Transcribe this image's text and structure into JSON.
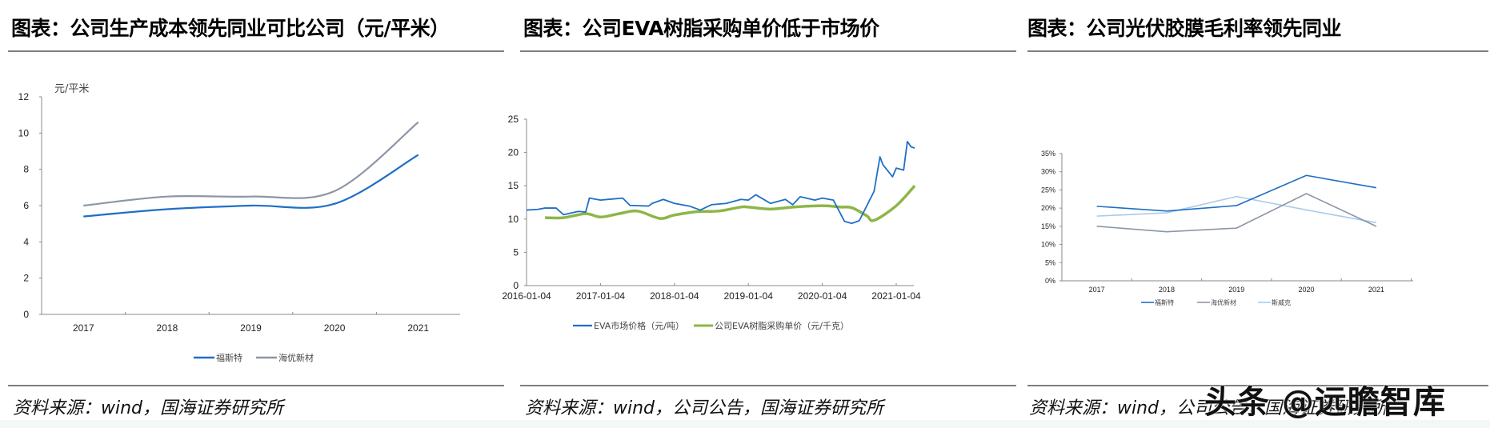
{
  "panels": [
    {
      "title": "图表：公司生产成本领先同业可比公司（元/平米）",
      "source": "资料来源：wind，国海证券研究所"
    },
    {
      "title": "图表：公司EVA树脂采购单价低于市场价",
      "source": "资料来源：wind，公司公告，国海证券研究所"
    },
    {
      "title": "图表：公司光伏胶膜毛利率领先同业",
      "source": "资料来源：wind，公司公告，国海证券研究所"
    }
  ],
  "watermark": "头条 @远瞻智库",
  "colors": {
    "blue": "#1f6fc5",
    "gray": "#8c96a6",
    "green": "#8db648",
    "light_blue": "#a8cbea",
    "rule": "#7f7f7f"
  },
  "chart_data": [
    {
      "type": "line",
      "title": "图表：公司生产成本领先同业可比公司（元/平米）",
      "ylabel": "元/平米",
      "xlabel": "",
      "categories": [
        "2017",
        "2018",
        "2019",
        "2020",
        "2021"
      ],
      "yticks": [
        "0",
        "2",
        "4",
        "6",
        "8",
        "10",
        "12"
      ],
      "ylim": [
        0,
        12
      ],
      "series": [
        {
          "name": "福斯特",
          "color": "#1f6fc5",
          "values": [
            5.4,
            5.8,
            6.0,
            6.1,
            8.8
          ]
        },
        {
          "name": "海优新材",
          "color": "#8c96a6",
          "values": [
            6.0,
            6.5,
            6.5,
            6.8,
            10.6
          ]
        }
      ],
      "legend_position": "bottom",
      "grid": false,
      "smooth": true
    },
    {
      "type": "line",
      "title": "图表：公司EVA树脂采购单价低于市场价",
      "xlabel": "",
      "ylabel": "",
      "x_ticks": [
        "2016-01-04",
        "2017-01-04",
        "2018-01-04",
        "2019-01-04",
        "2020-01-04",
        "2021-01-04"
      ],
      "yticks": [
        "0",
        "5",
        "10",
        "15",
        "20",
        "25"
      ],
      "ylim": [
        0,
        25
      ],
      "series": [
        {
          "name": "EVA市场价格（元/吨）",
          "color": "#1f6fc5",
          "x": [
            2016.0,
            2016.15,
            2016.25,
            2016.4,
            2016.5,
            2016.7,
            2016.8,
            2016.85,
            2017.0,
            2017.3,
            2017.4,
            2017.65,
            2017.7,
            2017.85,
            2018.0,
            2018.2,
            2018.35,
            2018.5,
            2018.7,
            2018.9,
            2019.0,
            2019.1,
            2019.3,
            2019.5,
            2019.6,
            2019.7,
            2019.9,
            2020.0,
            2020.15,
            2020.3,
            2020.4,
            2020.5,
            2020.55,
            2020.7,
            2020.78,
            2020.82,
            2020.95,
            2021.0,
            2021.1,
            2021.15,
            2021.2,
            2021.25
          ],
          "values": [
            11.5,
            11.3,
            11.8,
            11.5,
            10.8,
            11.0,
            11.2,
            13.0,
            13.0,
            13.0,
            12.2,
            11.8,
            12.5,
            12.8,
            12.5,
            11.8,
            11.5,
            12.0,
            12.5,
            12.8,
            13.0,
            13.5,
            12.5,
            12.8,
            12.3,
            13.2,
            13.0,
            13.0,
            13.0,
            9.5,
            9.5,
            9.6,
            11.0,
            14.0,
            19.5,
            18.0,
            16.5,
            17.5,
            17.5,
            21.5,
            21.0,
            20.5
          ]
        },
        {
          "name": "公司EVA树脂采购单价（元/千克）",
          "color": "#8db648",
          "x": [
            2016.25,
            2016.5,
            2016.8,
            2017.0,
            2017.25,
            2017.5,
            2017.8,
            2018.0,
            2018.3,
            2018.6,
            2018.9,
            2019.0,
            2019.3,
            2019.6,
            2020.0,
            2020.25,
            2020.4,
            2020.6,
            2020.7,
            2021.0,
            2021.25
          ],
          "values": [
            10.2,
            10.2,
            10.8,
            10.3,
            10.8,
            11.2,
            10.1,
            10.6,
            11.1,
            11.2,
            11.8,
            11.8,
            11.5,
            11.8,
            12.0,
            11.8,
            11.7,
            10.5,
            9.8,
            12.0,
            15.0
          ]
        }
      ],
      "legend_position": "bottom",
      "grid": false
    },
    {
      "type": "line",
      "title": "图表：公司光伏胶膜毛利率领先同业",
      "xlabel": "",
      "ylabel": "",
      "categories": [
        "2017",
        "2018",
        "2019",
        "2020",
        "2021"
      ],
      "yticks": [
        "0%",
        "5%",
        "10%",
        "15%",
        "20%",
        "25%",
        "30%",
        "35%"
      ],
      "ylim": [
        0,
        35
      ],
      "series": [
        {
          "name": "福斯特",
          "color": "#1f6fc5",
          "values": [
            20.5,
            19.2,
            20.7,
            29.0,
            25.6
          ]
        },
        {
          "name": "海优新材",
          "color": "#8c96a6",
          "values": [
            15.0,
            13.5,
            14.5,
            24.0,
            15.0
          ]
        },
        {
          "name": "斯威克",
          "color": "#a8cbea",
          "values": [
            17.8,
            18.7,
            23.2,
            19.5,
            16.0
          ]
        }
      ],
      "legend_position": "bottom",
      "grid": false
    }
  ]
}
